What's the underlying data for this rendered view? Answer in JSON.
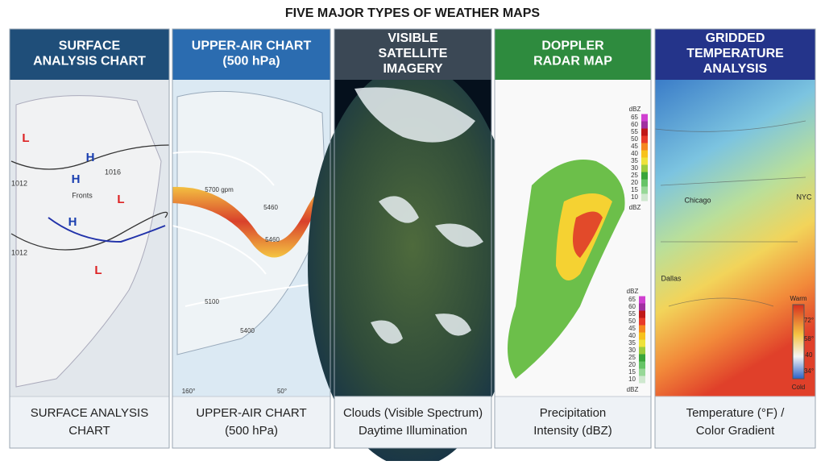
{
  "title": "FIVE MAJOR TYPES OF WEATHER MAPS",
  "panels": [
    {
      "header": [
        "SURFACE",
        "ANALYSIS CHART"
      ],
      "caption": [
        "SURFACE ANALYSIS",
        "CHART"
      ],
      "labels": [
        "L",
        "H",
        "H",
        "H",
        "L",
        "L",
        "1016",
        "1012",
        "1012",
        "Fronts"
      ]
    },
    {
      "header": [
        "UPPER-AIR CHART",
        "(500 hPa)"
      ],
      "caption": [
        "UPPER-AIR CHART",
        "(500 hPa)"
      ],
      "labels": [
        "5700 gpm",
        "5460",
        "5460",
        "5400",
        "5100",
        "160°",
        "50°"
      ]
    },
    {
      "header": [
        "VISIBLE",
        "SATELLITE",
        "IMAGERY"
      ],
      "caption": [
        "Clouds (Visible Spectrum)",
        "Daytime Illumination"
      ]
    },
    {
      "header": [
        "DOPPLER",
        "RADAR MAP"
      ],
      "caption": [
        "Precipitation",
        "Intensity (dBZ)"
      ],
      "legend_unit": "dBZ",
      "legend": [
        65,
        60,
        55,
        50,
        45,
        40,
        35,
        30,
        25,
        20,
        15,
        10
      ]
    },
    {
      "header": [
        "GRIDDED",
        "TEMPERATURE",
        "ANALYSIS"
      ],
      "caption": [
        "Temperature (°F) /",
        "Color Gradient"
      ],
      "labels": [
        "Chicago",
        "NYC",
        "Dallas"
      ],
      "legend": [
        "Warm",
        "72°",
        "58°",
        "40",
        "34°",
        "Cold"
      ]
    }
  ]
}
